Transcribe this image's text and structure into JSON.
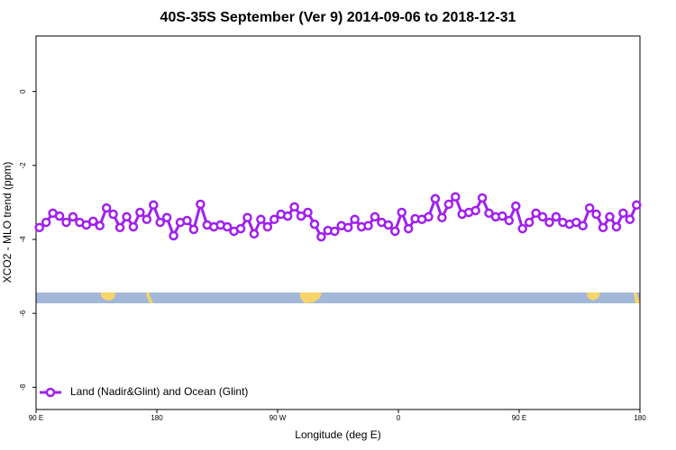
{
  "chart_data": {
    "type": "line",
    "title": "40S-35S September (Ver 9)   2014-09-06 to 2018-12-31",
    "x_label": "Longitude (deg E)",
    "y_label": "XCO2 - MLO trend (ppm)",
    "xlim": [
      90,
      540
    ],
    "ylim": [
      -8.6,
      1.5
    ],
    "xticks": [
      {
        "value": 90,
        "label": "90 E"
      },
      180,
      {
        "value": 270,
        "label": "90 W"
      },
      {
        "value": 360,
        "label": "0"
      },
      {
        "value": 450,
        "label": "90 E"
      },
      {
        "value": 540,
        "label": "180"
      }
    ],
    "yticks": [
      0,
      -2,
      -4,
      -6,
      -8
    ],
    "legend_position": "bottom-left",
    "x": [
      92.5,
      97.5,
      102.5,
      107.5,
      112.5,
      117.5,
      122.5,
      127.5,
      132.5,
      137.5,
      142.5,
      147.5,
      152.5,
      157.5,
      162.5,
      167.5,
      172.5,
      177.5,
      182.5,
      187.5,
      192.5,
      197.5,
      202.5,
      207.5,
      212.5,
      217.5,
      222.5,
      227.5,
      232.5,
      237.5,
      242.5,
      247.5,
      252.5,
      257.5,
      262.5,
      267.5,
      272.5,
      277.5,
      282.5,
      287.5,
      292.5,
      297.5,
      302.5,
      307.5,
      312.5,
      317.5,
      322.5,
      327.5,
      332.5,
      337.5,
      342.5,
      347.5,
      352.5,
      357.5,
      362.5,
      367.5,
      372.5,
      377.5,
      382.5,
      387.5,
      392.5,
      397.5,
      402.5,
      407.5,
      412.5,
      417.5,
      422.5,
      427.5,
      432.5,
      437.5,
      442.5,
      447.5,
      452.5,
      457.5,
      462.5,
      467.5,
      472.5,
      477.5,
      482.5,
      487.5,
      492.5,
      497.5,
      502.5,
      507.5,
      512.5,
      517.5,
      522.5,
      527.5,
      532.5,
      537.5
    ],
    "series": [
      {
        "name": "Land (Nadir&Glint) and Ocean (Glint)",
        "color": "#a020f0",
        "values": [
          -3.68,
          -3.54,
          -3.29,
          -3.37,
          -3.54,
          -3.39,
          -3.54,
          -3.61,
          -3.51,
          -3.63,
          -3.15,
          -3.32,
          -3.68,
          -3.39,
          -3.66,
          -3.27,
          -3.46,
          -3.07,
          -3.54,
          -3.41,
          -3.9,
          -3.54,
          -3.49,
          -3.73,
          -3.05,
          -3.61,
          -3.66,
          -3.61,
          -3.66,
          -3.78,
          -3.71,
          -3.41,
          -3.85,
          -3.46,
          -3.66,
          -3.46,
          -3.32,
          -3.37,
          -3.12,
          -3.37,
          -3.27,
          -3.59,
          -3.93,
          -3.76,
          -3.78,
          -3.63,
          -3.68,
          -3.46,
          -3.66,
          -3.63,
          -3.39,
          -3.54,
          -3.61,
          -3.78,
          -3.27,
          -3.71,
          -3.44,
          -3.46,
          -3.39,
          -2.9,
          -3.41,
          -3.05,
          -2.85,
          -3.32,
          -3.27,
          -3.22,
          -2.88,
          -3.29,
          -3.39,
          -3.37,
          -3.49,
          -3.1,
          -3.71,
          -3.54,
          -3.29,
          -3.39,
          -3.54,
          -3.39,
          -3.54,
          -3.59,
          -3.54,
          -3.63,
          -3.15,
          -3.32,
          -3.68,
          -3.39,
          -3.66,
          -3.29,
          -3.46,
          -3.07
        ]
      }
    ]
  }
}
